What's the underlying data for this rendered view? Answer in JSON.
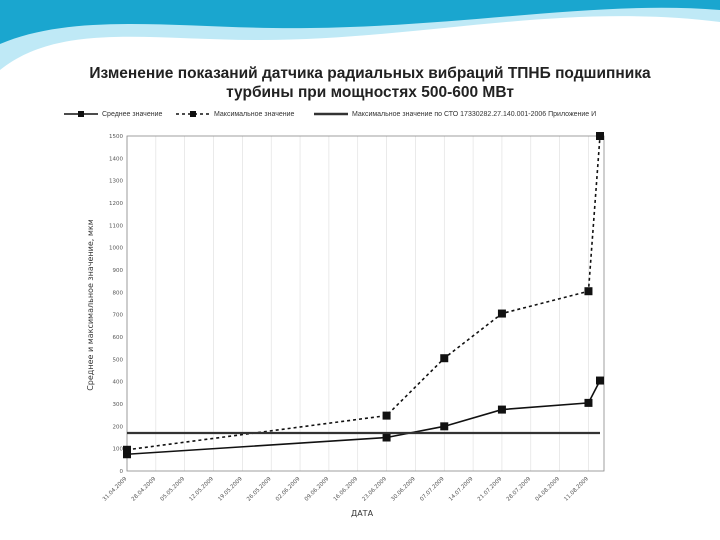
{
  "slide": {
    "accent_dark": "#1aa6cf",
    "accent_light": "#bfe9f6"
  },
  "chart_data": {
    "type": "line",
    "title_line1": "Изменение показаний датчика радиальных вибраций ТПНБ подшипника",
    "title_line2": "турбины при мощностях 500-600 МВт",
    "xlabel": "ДАТА",
    "ylabel": "Среднее и максимальное значение, мкм",
    "ylim": [
      0,
      1500
    ],
    "yticks": [
      0,
      100,
      200,
      300,
      400,
      500,
      600,
      700,
      800,
      900,
      1000,
      1100,
      1200,
      1300,
      1400,
      1500
    ],
    "grid": "vertical",
    "legend_position": "top",
    "categories": [
      "31.04.2009",
      "28.04.2009",
      "05.05.2009",
      "12.05.2009",
      "19.05.2009",
      "26.05.2009",
      "02.06.2009",
      "09.06.2009",
      "16.06.2009",
      "23.06.2009",
      "30.06.2009",
      "07.07.2009",
      "14.07.2009",
      "21.07.2009",
      "28.07.2009",
      "04.08.2009",
      "11.08.2009"
    ],
    "series": [
      {
        "name": "Среднее значение",
        "style": "solid",
        "color": "#111111",
        "points": [
          [
            0,
            75
          ],
          [
            9,
            150
          ],
          [
            11,
            200
          ],
          [
            13,
            275
          ],
          [
            16,
            305
          ],
          [
            16.4,
            405
          ]
        ]
      },
      {
        "name": "Максимальное значение",
        "style": "dashed",
        "color": "#111111",
        "points": [
          [
            0,
            95
          ],
          [
            9,
            248
          ],
          [
            11,
            505
          ],
          [
            13,
            705
          ],
          [
            16,
            805
          ],
          [
            16.4,
            1500
          ]
        ]
      },
      {
        "name": "Максимальное значение по СТО 17330282.27.140.001-2006 Приложение И",
        "style": "thick",
        "color": "#333333",
        "points": [
          [
            0,
            170
          ],
          [
            16.4,
            170
          ]
        ]
      }
    ]
  }
}
